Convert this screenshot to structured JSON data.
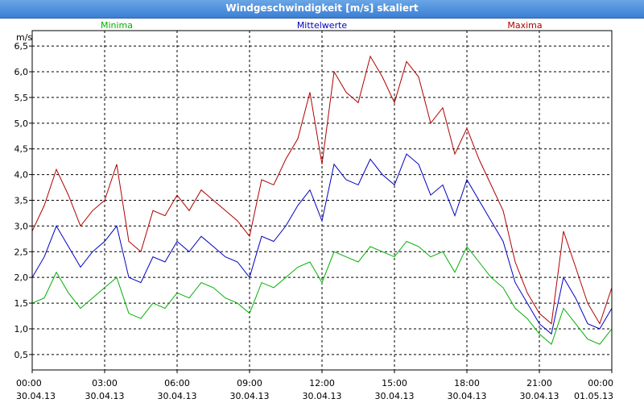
{
  "window": {
    "title": "Windgeschwindigkeit [m/s] skaliert"
  },
  "chart_data": {
    "type": "line",
    "title": "Windgeschwindigkeit [m/s] skaliert",
    "ylabel": "m/s",
    "xlabel": "",
    "ylim": [
      0.2,
      6.8
    ],
    "xlim": [
      0,
      24
    ],
    "grid": true,
    "legend_placement": "top",
    "yticks": [
      "0,5",
      "1,0",
      "1,5",
      "2,0",
      "2,5",
      "3,0",
      "3,5",
      "4,0",
      "4,5",
      "5,0",
      "5,5",
      "6,0",
      "6,5"
    ],
    "xticks": [
      {
        "time": "00:00",
        "date": "30.04.13"
      },
      {
        "time": "03:00",
        "date": "30.04.13"
      },
      {
        "time": "06:00",
        "date": "30.04.13"
      },
      {
        "time": "09:00",
        "date": "30.04.13"
      },
      {
        "time": "12:00",
        "date": "30.04.13"
      },
      {
        "time": "15:00",
        "date": "30.04.13"
      },
      {
        "time": "18:00",
        "date": "30.04.13"
      },
      {
        "time": "21:00",
        "date": "30.04.13"
      },
      {
        "time": "00:00",
        "date": "01.05.13"
      }
    ],
    "x_hours": [
      0,
      0.5,
      1,
      1.5,
      2,
      2.5,
      3,
      3.5,
      4,
      4.5,
      5,
      5.5,
      6,
      6.5,
      7,
      7.5,
      8,
      8.5,
      9,
      9.5,
      10,
      10.5,
      11,
      11.5,
      12,
      12.5,
      13,
      13.5,
      14,
      14.5,
      15,
      15.5,
      16,
      16.5,
      17,
      17.5,
      18,
      18.5,
      19,
      19.5,
      20,
      20.5,
      21,
      21.5,
      22,
      22.5,
      23,
      23.5,
      24
    ],
    "series": [
      {
        "name": "Minima",
        "color": "#00b000",
        "values": [
          1.5,
          1.6,
          2.1,
          1.7,
          1.4,
          1.6,
          1.8,
          2.0,
          1.3,
          1.2,
          1.5,
          1.4,
          1.7,
          1.6,
          1.9,
          1.8,
          1.6,
          1.5,
          1.3,
          1.9,
          1.8,
          2.0,
          2.2,
          2.3,
          1.9,
          2.5,
          2.4,
          2.3,
          2.6,
          2.5,
          2.4,
          2.7,
          2.6,
          2.4,
          2.5,
          2.1,
          2.6,
          2.3,
          2.0,
          1.8,
          1.4,
          1.2,
          0.9,
          0.7,
          1.4,
          1.1,
          0.8,
          0.7,
          1.0
        ]
      },
      {
        "name": "Mittelwerte",
        "color": "#0000c0",
        "values": [
          2.0,
          2.4,
          3.0,
          2.6,
          2.2,
          2.5,
          2.7,
          3.0,
          2.0,
          1.9,
          2.4,
          2.3,
          2.7,
          2.5,
          2.8,
          2.6,
          2.4,
          2.3,
          2.0,
          2.8,
          2.7,
          3.0,
          3.4,
          3.7,
          3.1,
          4.2,
          3.9,
          3.8,
          4.3,
          4.0,
          3.8,
          4.4,
          4.2,
          3.6,
          3.8,
          3.2,
          3.9,
          3.5,
          3.1,
          2.7,
          1.9,
          1.5,
          1.1,
          0.9,
          2.0,
          1.6,
          1.1,
          1.0,
          1.4
        ]
      },
      {
        "name": "Maxima",
        "color": "#b00000",
        "values": [
          2.9,
          3.4,
          4.1,
          3.6,
          3.0,
          3.3,
          3.5,
          4.2,
          2.7,
          2.5,
          3.3,
          3.2,
          3.6,
          3.3,
          3.7,
          3.5,
          3.3,
          3.1,
          2.8,
          3.9,
          3.8,
          4.3,
          4.7,
          5.6,
          4.2,
          6.0,
          5.6,
          5.4,
          6.3,
          5.9,
          5.4,
          6.2,
          5.9,
          5.0,
          5.3,
          4.4,
          4.9,
          4.3,
          3.8,
          3.3,
          2.3,
          1.7,
          1.3,
          1.1,
          2.9,
          2.2,
          1.5,
          1.1,
          1.8
        ]
      }
    ]
  }
}
